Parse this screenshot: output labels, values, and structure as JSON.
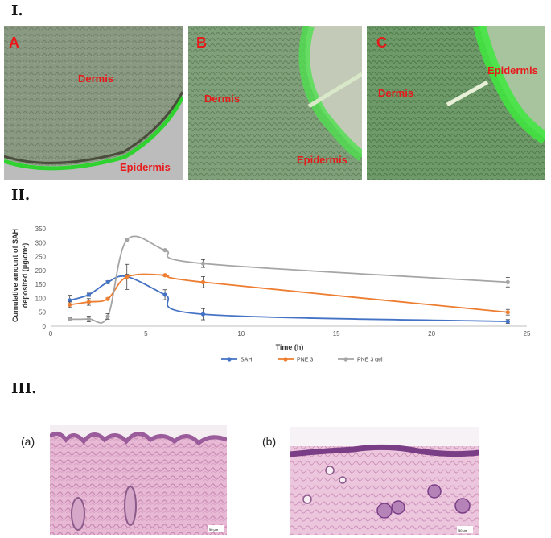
{
  "sections": {
    "one": "I.",
    "two": "II.",
    "three": "III."
  },
  "micrographs": [
    {
      "panel": "A",
      "labels": [
        "Dermis",
        "Epidermis"
      ]
    },
    {
      "panel": "B",
      "labels": [
        "Dermis",
        "Epidermis"
      ]
    },
    {
      "panel": "C",
      "labels": [
        "Dermis",
        "Epidermis"
      ]
    }
  ],
  "histology": [
    {
      "label": "(a)",
      "scale": "50 μm"
    },
    {
      "label": "(b)",
      "scale": "50 μm"
    }
  ],
  "colors": {
    "tag_red": "#e8191b",
    "SAH": "#4472c4",
    "PNE 3": "#ed7d31",
    "PNE 3 gel": "#a5a5a5"
  },
  "chart_data": {
    "type": "line",
    "title": "",
    "xlabel": "Time (h)",
    "ylabel": "Cumulative amount of SAH deposited (μg/cm²)",
    "ylabel_lines": [
      "Cumulative amount of SAH",
      "deposited (μg/cm²)"
    ],
    "xlim": [
      0,
      25
    ],
    "ylim": [
      0,
      350
    ],
    "x_ticks": [
      0,
      5,
      10,
      15,
      20,
      25
    ],
    "y_ticks": [
      0,
      50,
      100,
      150,
      200,
      250,
      300,
      350
    ],
    "grid": false,
    "legend_position": "bottom",
    "series": [
      {
        "name": "SAH",
        "color": "#4472c4",
        "x": [
          1,
          2,
          3,
          4,
          6,
          8,
          24
        ],
        "y": [
          93,
          113,
          158,
          178,
          113,
          43,
          17
        ],
        "err": [
          18,
          6,
          5,
          8,
          18,
          20,
          7
        ]
      },
      {
        "name": "PNE 3",
        "color": "#ed7d31",
        "x": [
          1,
          2,
          3,
          4,
          6,
          8,
          24
        ],
        "y": [
          77,
          87,
          98,
          177,
          183,
          158,
          50
        ],
        "err": [
          10,
          12,
          4,
          45,
          3,
          20,
          10
        ]
      },
      {
        "name": "PNE 3 gel",
        "color": "#a5a5a5",
        "x": [
          1,
          2,
          3,
          4,
          6,
          8,
          24
        ],
        "y": [
          25,
          26,
          35,
          310,
          273,
          225,
          158
        ],
        "err": [
          6,
          10,
          10,
          7,
          3,
          14,
          17
        ]
      }
    ]
  }
}
